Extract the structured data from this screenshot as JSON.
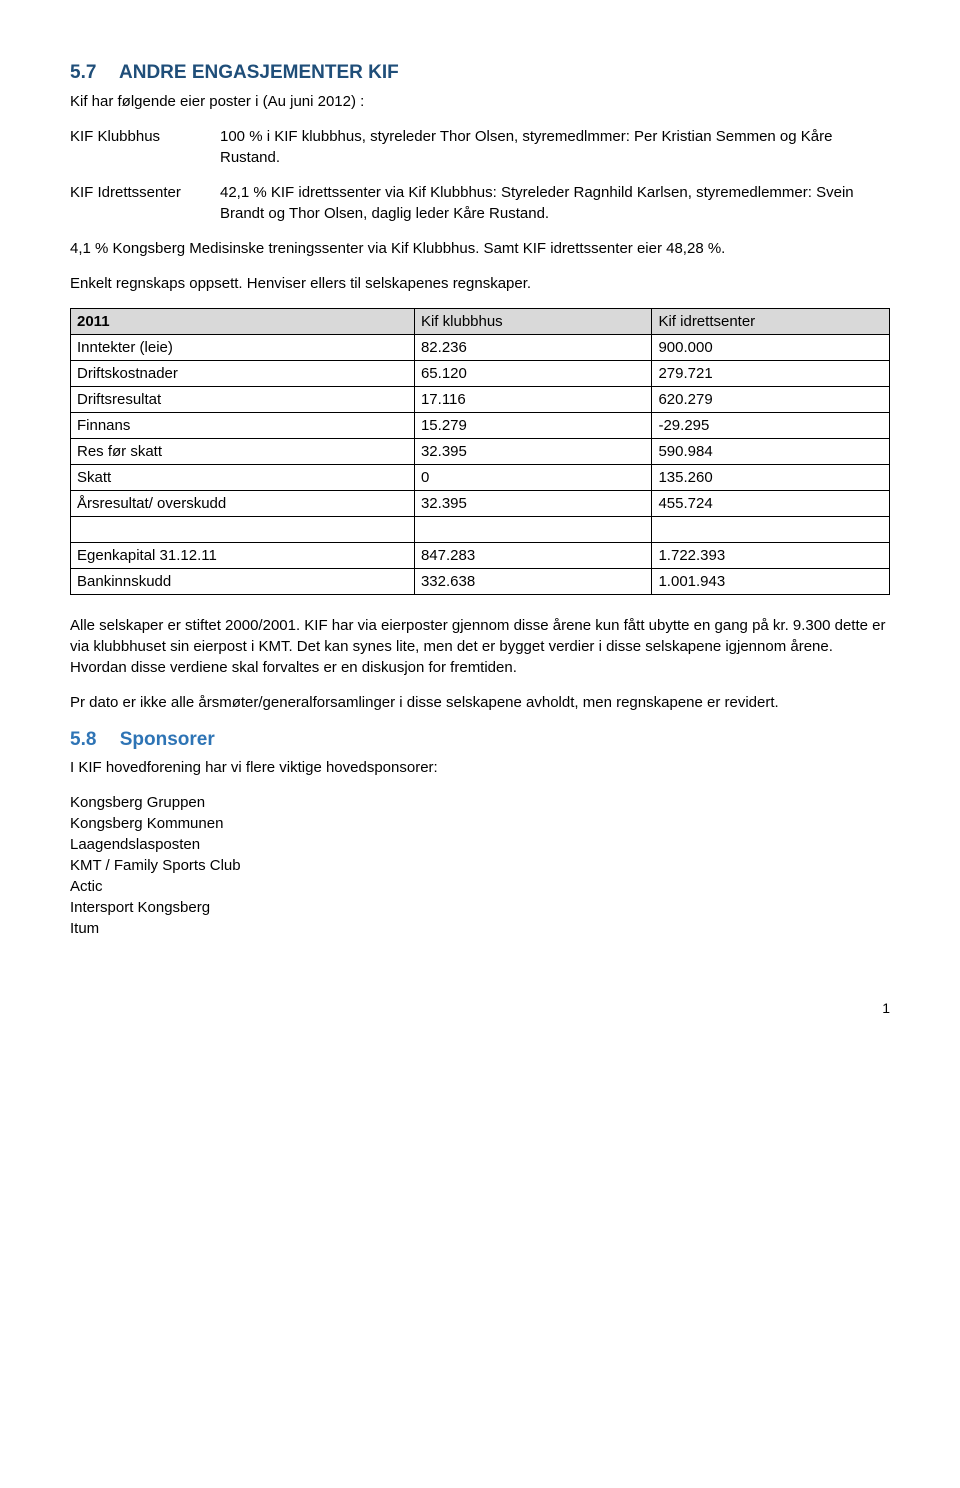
{
  "section57": {
    "num": "5.7",
    "title": "ANDRE ENGASJEMENTER KIF",
    "intro": "Kif har følgende eier poster i (Au juni 2012) :",
    "defs": [
      {
        "term": "KIF Klubbhus",
        "desc": "100 % i KIF klubbhus, styreleder Thor Olsen, styremedlmmer: Per Kristian Semmen og Kåre Rustand."
      },
      {
        "term": "KIF Idrettssenter",
        "desc": "42,1 % KIF idrettssenter via Kif Klubbhus: Styreleder Ragnhild Karlsen, styremedlemmer: Svein Brandt og Thor Olsen, daglig leder Kåre Rustand."
      }
    ],
    "para1": "4,1 % Kongsberg Medisinske treningssenter via Kif Klubbhus. Samt KIF idrettssenter eier 48,28 %.",
    "para2": "Enkelt regnskaps oppsett. Henviser ellers til selskapenes regnskaper.",
    "table": {
      "headers": [
        "2011",
        "Kif klubbhus",
        "Kif idrettsenter"
      ],
      "rows": [
        [
          "Inntekter (leie)",
          "82.236",
          "900.000"
        ],
        [
          "Driftskostnader",
          "65.120",
          "279.721"
        ],
        [
          "Driftsresultat",
          "17.116",
          "620.279"
        ],
        [
          "Finnans",
          "15.279",
          "-29.295"
        ],
        [
          "Res før skatt",
          "32.395",
          "590.984"
        ],
        [
          "Skatt",
          "0",
          "135.260"
        ],
        [
          "Årsresultat/ overskudd",
          "32.395",
          "455.724"
        ],
        [
          "",
          "",
          ""
        ],
        [
          "Egenkapital 31.12.11",
          "847.283",
          "1.722.393"
        ],
        [
          "Bankinnskudd",
          "332.638",
          "1.001.943"
        ]
      ]
    },
    "para3": "Alle selskaper er stiftet 2000/2001. KIF har via eierposter gjennom disse årene kun fått ubytte en gang på kr. 9.300 dette er via klubbhuset sin eierpost i KMT. Det kan synes lite, men det er bygget verdier i disse selskapene igjennom årene. Hvordan disse verdiene skal forvaltes er en diskusjon for fremtiden.",
    "para4": "Pr dato er ikke alle årsmøter/generalforsamlinger i disse selskapene avholdt, men regnskapene er revidert."
  },
  "section58": {
    "num": "5.8",
    "title": "Sponsorer",
    "intro": "I KIF hovedforening har vi flere viktige hovedsponsorer:",
    "sponsors": [
      "Kongsberg Gruppen",
      "Kongsberg Kommunen",
      "Laagendslasposten",
      "KMT / Family Sports Club",
      "Actic",
      "Intersport Kongsberg",
      "Itum"
    ]
  },
  "page": "1"
}
